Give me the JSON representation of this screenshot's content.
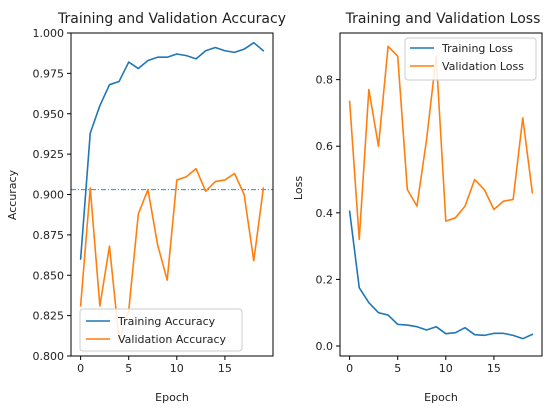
{
  "colors": {
    "training": "#1f77b4",
    "validation": "#ff7f0e",
    "axis": "#000000"
  },
  "chart_data": [
    {
      "type": "line",
      "title": "Training and Validation Accuracy",
      "xlabel": "Epoch",
      "ylabel": "Accuracy",
      "xlim": [
        -1,
        20
      ],
      "ylim": [
        0.8,
        1.0
      ],
      "xticks": [
        0,
        5,
        10,
        15
      ],
      "yticks": [
        0.8,
        0.825,
        0.85,
        0.875,
        0.9,
        0.925,
        0.95,
        0.975,
        1.0
      ],
      "xtick_labels": [
        "0",
        "5",
        "10",
        "15"
      ],
      "ytick_labels": [
        "0.800",
        "0.825",
        "0.850",
        "0.875",
        "0.900",
        "0.925",
        "0.950",
        "0.975",
        "1.000"
      ],
      "x": [
        0,
        1,
        2,
        3,
        4,
        5,
        6,
        7,
        8,
        9,
        10,
        11,
        12,
        13,
        14,
        15,
        16,
        17,
        18,
        19
      ],
      "reference_line": {
        "y": 0.903,
        "style": "dash-dot",
        "color": "#1f77b4"
      },
      "legend_position": "lower-right",
      "series": [
        {
          "name": "Training Accuracy",
          "color": "#1f77b4",
          "values": [
            0.86,
            0.938,
            0.955,
            0.968,
            0.97,
            0.982,
            0.978,
            0.983,
            0.985,
            0.985,
            0.987,
            0.986,
            0.984,
            0.989,
            0.991,
            0.989,
            0.988,
            0.99,
            0.994,
            0.989
          ]
        },
        {
          "name": "Validation Accuracy",
          "color": "#ff7f0e",
          "values": [
            0.831,
            0.904,
            0.831,
            0.868,
            0.81,
            0.828,
            0.888,
            0.903,
            0.869,
            0.847,
            0.909,
            0.911,
            0.916,
            0.902,
            0.908,
            0.909,
            0.913,
            0.9,
            0.859,
            0.904
          ]
        }
      ]
    },
    {
      "type": "line",
      "title": "Training and Validation Loss",
      "xlabel": "Epoch",
      "ylabel": "Loss",
      "xlim": [
        -1,
        20
      ],
      "ylim": [
        -0.03,
        0.94
      ],
      "xticks": [
        0,
        5,
        10,
        15
      ],
      "yticks": [
        0,
        0.2,
        0.4,
        0.6,
        0.8
      ],
      "xtick_labels": [
        "0",
        "5",
        "10",
        "15"
      ],
      "ytick_labels": [
        "0.0",
        "0.2",
        "0.4",
        "0.6",
        "0.8"
      ],
      "x": [
        0,
        1,
        2,
        3,
        4,
        5,
        6,
        7,
        8,
        9,
        10,
        11,
        12,
        13,
        14,
        15,
        16,
        17,
        18,
        19
      ],
      "legend_position": "upper-right",
      "series": [
        {
          "name": "Training Loss",
          "color": "#1f77b4",
          "values": [
            0.405,
            0.175,
            0.13,
            0.1,
            0.093,
            0.065,
            0.063,
            0.058,
            0.048,
            0.058,
            0.037,
            0.04,
            0.055,
            0.034,
            0.032,
            0.038,
            0.038,
            0.032,
            0.022,
            0.035
          ]
        },
        {
          "name": "Validation Loss",
          "color": "#ff7f0e",
          "values": [
            0.735,
            0.32,
            0.77,
            0.6,
            0.9,
            0.87,
            0.47,
            0.42,
            0.62,
            0.87,
            0.375,
            0.385,
            0.42,
            0.5,
            0.47,
            0.41,
            0.435,
            0.44,
            0.685,
            0.46
          ]
        }
      ]
    }
  ]
}
